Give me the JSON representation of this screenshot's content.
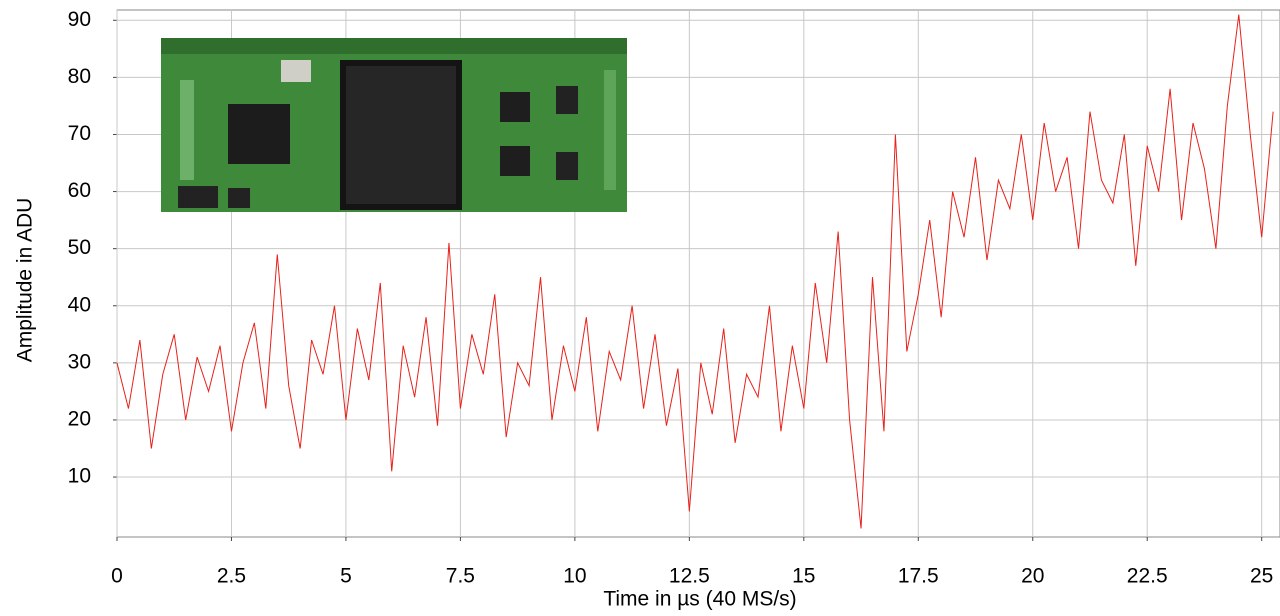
{
  "chart_data": {
    "type": "line",
    "xlabel": "Time in µs (40 MS/s)",
    "ylabel": "Amplitude in ADU",
    "x": [
      0,
      0.25,
      0.5,
      0.75,
      1,
      1.25,
      1.5,
      1.75,
      2,
      2.25,
      2.5,
      2.75,
      3,
      3.25,
      3.5,
      3.75,
      4,
      4.25,
      4.5,
      4.75,
      5,
      5.25,
      5.5,
      5.75,
      6,
      6.25,
      6.5,
      6.75,
      7,
      7.25,
      7.5,
      7.75,
      8,
      8.25,
      8.5,
      8.75,
      9,
      9.25,
      9.5,
      9.75,
      10,
      10.25,
      10.5,
      10.75,
      11,
      11.25,
      11.5,
      11.75,
      12,
      12.25,
      12.5,
      12.75,
      13,
      13.25,
      13.5,
      13.75,
      14,
      14.25,
      14.5,
      14.75,
      15,
      15.25,
      15.5,
      15.75,
      16,
      16.25,
      16.5,
      16.75,
      17,
      17.25,
      17.5,
      17.75,
      18,
      18.25,
      18.5,
      18.75,
      19,
      19.25,
      19.5,
      19.75,
      20,
      20.25,
      20.5,
      20.75,
      21,
      21.25,
      21.5,
      21.75,
      22,
      22.25,
      22.5,
      22.75,
      23,
      23.25,
      23.5,
      23.75,
      24,
      24.25,
      24.5,
      24.75,
      25,
      25.25
    ],
    "values": [
      30,
      22,
      34,
      15,
      28,
      35,
      20,
      31,
      25,
      33,
      18,
      30,
      37,
      22,
      49,
      26,
      15,
      34,
      28,
      40,
      20,
      36,
      27,
      44,
      11,
      33,
      24,
      38,
      19,
      51,
      22,
      35,
      28,
      42,
      17,
      30,
      26,
      45,
      20,
      33,
      25,
      38,
      18,
      32,
      27,
      40,
      22,
      35,
      19,
      29,
      4,
      30,
      21,
      36,
      16,
      28,
      24,
      40,
      18,
      33,
      22,
      44,
      30,
      53,
      20,
      1,
      45,
      18,
      70,
      32,
      42,
      55,
      38,
      60,
      52,
      66,
      48,
      62,
      57,
      70,
      55,
      72,
      60,
      66,
      50,
      74,
      62,
      58,
      70,
      47,
      68,
      60,
      78,
      55,
      72,
      64,
      50,
      75,
      91,
      70,
      52,
      74
    ],
    "color": "#e8211a",
    "xlim": [
      0,
      25.4
    ],
    "ylim": [
      -0.5,
      91.8
    ],
    "xticks": [
      0,
      2.5,
      5,
      7.5,
      10,
      12.5,
      15,
      17.5,
      20,
      22.5,
      25
    ],
    "yticks": [
      10,
      20,
      30,
      40,
      50,
      60,
      70,
      80,
      90
    ],
    "grid": true
  }
}
